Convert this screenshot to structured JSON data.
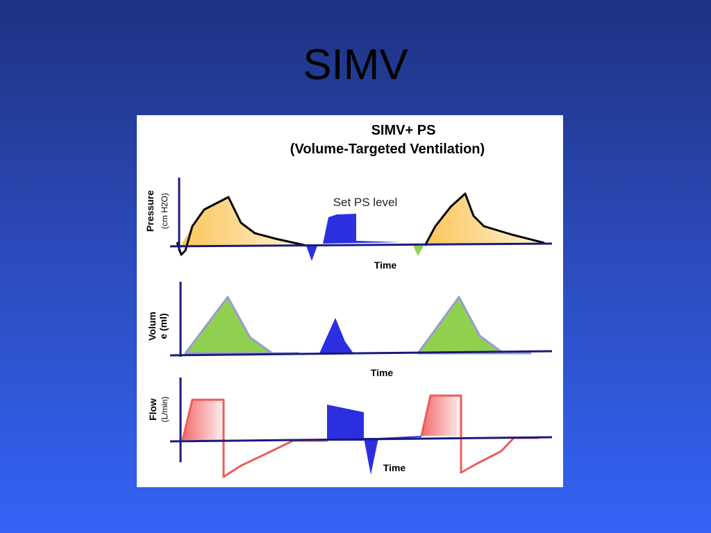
{
  "slide": {
    "title": "SIMV"
  },
  "diagram": {
    "title_line1": "SIMV+ PS",
    "title_line2": "(Volume-Targeted Ventilation)",
    "annotation": "Set PS level",
    "pressure_panel": {
      "label": "Pressure",
      "unit": "(cm H2O)",
      "x_label": "Time"
    },
    "volume_panel": {
      "label_line1": "Volum",
      "label_line2": "e (ml)",
      "x_label": "Time"
    },
    "flow_panel": {
      "label": "Flow",
      "unit": "(L/min)",
      "x_label": "Time"
    },
    "colors": {
      "mandatory_pressure_fill": "#fcd98c",
      "mandatory_volume_fill": "#8fd14f",
      "mandatory_flow_fill": "#f26b6b",
      "spontaneous_fill": "#2b2fe0",
      "trigger_marker": "#8fd14f",
      "axis": "#1a1a7a"
    }
  }
}
